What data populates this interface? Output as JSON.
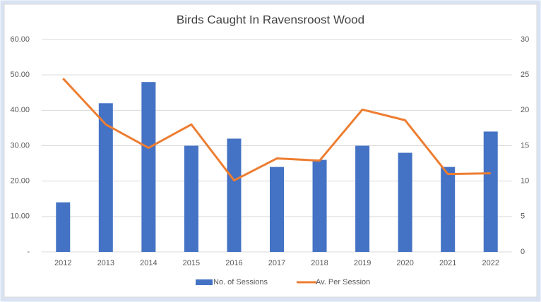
{
  "chart_data": {
    "type": "bar",
    "title": "Birds Caught In Ravensroost Wood",
    "categories": [
      "2012",
      "2013",
      "2014",
      "2015",
      "2016",
      "2017",
      "2018",
      "2019",
      "2020",
      "2021",
      "2022"
    ],
    "series": [
      {
        "name": "No. of Sessions",
        "type": "bar",
        "color": "#4472c4",
        "values": [
          14,
          42,
          48,
          30,
          32,
          24,
          26,
          30,
          28,
          24,
          34
        ]
      },
      {
        "name": "Av. Per Session",
        "type": "line",
        "axis": "y2",
        "color": "#ed7d31",
        "values": [
          24.5,
          18,
          14.7,
          18,
          10.1,
          13.2,
          12.9,
          20.1,
          18.6,
          11,
          11.1
        ]
      }
    ],
    "ylim": [
      0,
      60
    ],
    "yticks": [
      {
        "value": 0,
        "label": "-"
      },
      {
        "value": 10,
        "label": "10.00"
      },
      {
        "value": 20,
        "label": "20.00"
      },
      {
        "value": 30,
        "label": "30.00"
      },
      {
        "value": 40,
        "label": "40.00"
      },
      {
        "value": 50,
        "label": "50.00"
      },
      {
        "value": 60,
        "label": "60.00"
      }
    ],
    "y2lim": [
      0,
      30
    ],
    "y2ticks": [
      0,
      5,
      10,
      15,
      20,
      25,
      30
    ],
    "grid": true,
    "legend": "bottom"
  }
}
